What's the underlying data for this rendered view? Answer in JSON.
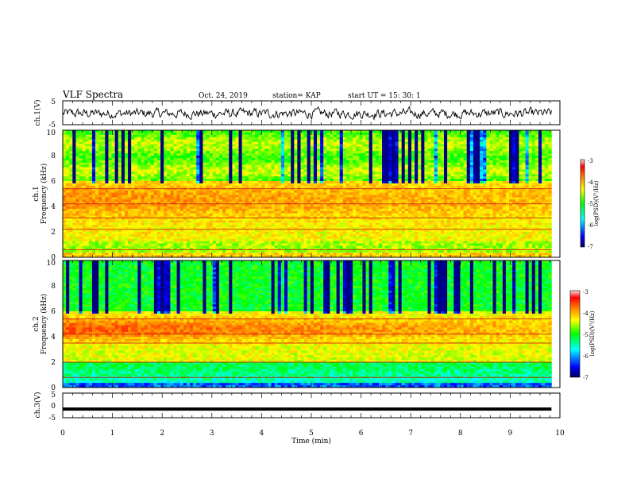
{
  "header": {
    "title": "VLF Spectra",
    "date": "Oct. 24, 2019",
    "station": "station= KAP",
    "start": "start  UT =   15: 30: 1"
  },
  "chart_data": [
    {
      "type": "line",
      "name": "ch1-waveform",
      "ylabel": "ch.1(V)",
      "ylim": [
        -5,
        5
      ],
      "yticks": [
        "5",
        "-5"
      ],
      "xlim": [
        0,
        10
      ],
      "data_end_min": 9.83
    },
    {
      "type": "heatmap",
      "name": "ch1-spectrogram",
      "ylabel": "ch.1\nFrequency (kHz)",
      "ylabel_line1": "ch.1",
      "ylabel_line2": "Frequency (kHz)",
      "ylim": [
        0,
        10
      ],
      "yticks": [
        "0",
        "2",
        "4",
        "6",
        "8",
        "10"
      ],
      "xlim": [
        0,
        10
      ],
      "strong_bands_khz": [
        5.4,
        4.2,
        3.1,
        2.2,
        0.6
      ],
      "colorbar": {
        "label": "log(PSD)(V²/Hz)",
        "range": [
          -7,
          -3
        ],
        "ticks": [
          "-3",
          "-4",
          "-5",
          "-6",
          "-7"
        ]
      }
    },
    {
      "type": "heatmap",
      "name": "ch2-spectrogram",
      "ylabel": "ch.2\nFrequency (kHz)",
      "ylabel_line1": "ch.2",
      "ylabel_line2": "Frequency (kHz)",
      "ylim": [
        0,
        10
      ],
      "yticks": [
        "0",
        "2",
        "4",
        "6",
        "8",
        "10"
      ],
      "xlim": [
        0,
        10
      ],
      "strong_bands_khz": [
        5.4,
        4.2,
        3.5,
        2.0,
        0.8
      ],
      "colorbar": {
        "label": "log(PSD)(V²/Hz)",
        "range": [
          -7,
          -3
        ],
        "ticks": [
          "-3",
          "-4",
          "-5",
          "-6",
          "-7"
        ]
      }
    },
    {
      "type": "line",
      "name": "ch3-waveform",
      "ylabel": "ch.3(V)",
      "ylim": [
        -5,
        5
      ],
      "yticks": [
        "5",
        "0",
        "-5"
      ],
      "xlim": [
        0,
        10
      ],
      "constant_value": -1.5
    }
  ],
  "xaxis": {
    "label": "Time (min)",
    "ticks": [
      "0",
      "1",
      "2",
      "3",
      "4",
      "5",
      "6",
      "7",
      "8",
      "9",
      "10"
    ]
  },
  "colors": {
    "line": "#000000",
    "colormap": [
      "#000080",
      "#0000ff",
      "#00ffff",
      "#00ff00",
      "#ffff00",
      "#ff8000",
      "#ff0000",
      "#ffc8c8"
    ]
  }
}
